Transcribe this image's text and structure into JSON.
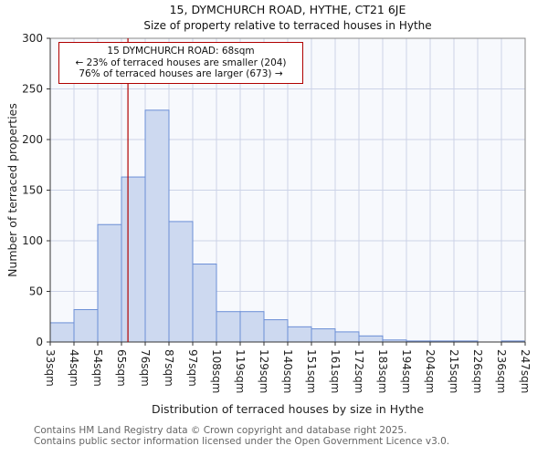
{
  "title": "15, DYMCHURCH ROAD, HYTHE, CT21 6JE",
  "subtitle": "Size of property relative to terraced houses in Hythe",
  "chart_data": {
    "type": "bar",
    "title": "15, DYMCHURCH ROAD, HYTHE, CT21 6JE",
    "subtitle": "Size of property relative to terraced houses in Hythe",
    "xlabel": "Distribution of terraced houses by size in Hythe",
    "ylabel": "Number of terraced properties",
    "ylim": [
      0,
      300
    ],
    "yticks": [
      0,
      50,
      100,
      150,
      200,
      250,
      300
    ],
    "grid": "on",
    "legend": "none",
    "bin_edges_labels": [
      "33sqm",
      "44sqm",
      "54sqm",
      "65sqm",
      "76sqm",
      "87sqm",
      "97sqm",
      "108sqm",
      "119sqm",
      "129sqm",
      "140sqm",
      "151sqm",
      "161sqm",
      "172sqm",
      "183sqm",
      "194sqm",
      "204sqm",
      "215sqm",
      "226sqm",
      "236sqm",
      "247sqm"
    ],
    "bin_start_values": [
      33,
      44,
      54,
      65,
      76,
      87,
      97,
      108,
      119,
      129,
      140,
      151,
      161,
      172,
      183,
      194,
      204,
      215,
      226,
      236,
      247
    ],
    "values": [
      19,
      32,
      116,
      163,
      229,
      119,
      77,
      30,
      30,
      22,
      15,
      13,
      10,
      6,
      2,
      1,
      1,
      1,
      0,
      1
    ],
    "bar_fill": "#cdd9f0",
    "bar_stroke": "#6b8ed6",
    "grid_color": "#ccd3e8",
    "plot_bg": "#f7f9fd",
    "marker": {
      "value_sqm": 68,
      "color": "#b00000",
      "annotation_lines": [
        "15 DYMCHURCH ROAD: 68sqm",
        "← 23% of terraced houses are smaller (204)",
        "76% of terraced houses are larger (673) →"
      ]
    }
  },
  "footer": {
    "line1": "Contains HM Land Registry data © Crown copyright and database right 2025.",
    "line2": "Contains public sector information licensed under the Open Government Licence v3.0."
  }
}
